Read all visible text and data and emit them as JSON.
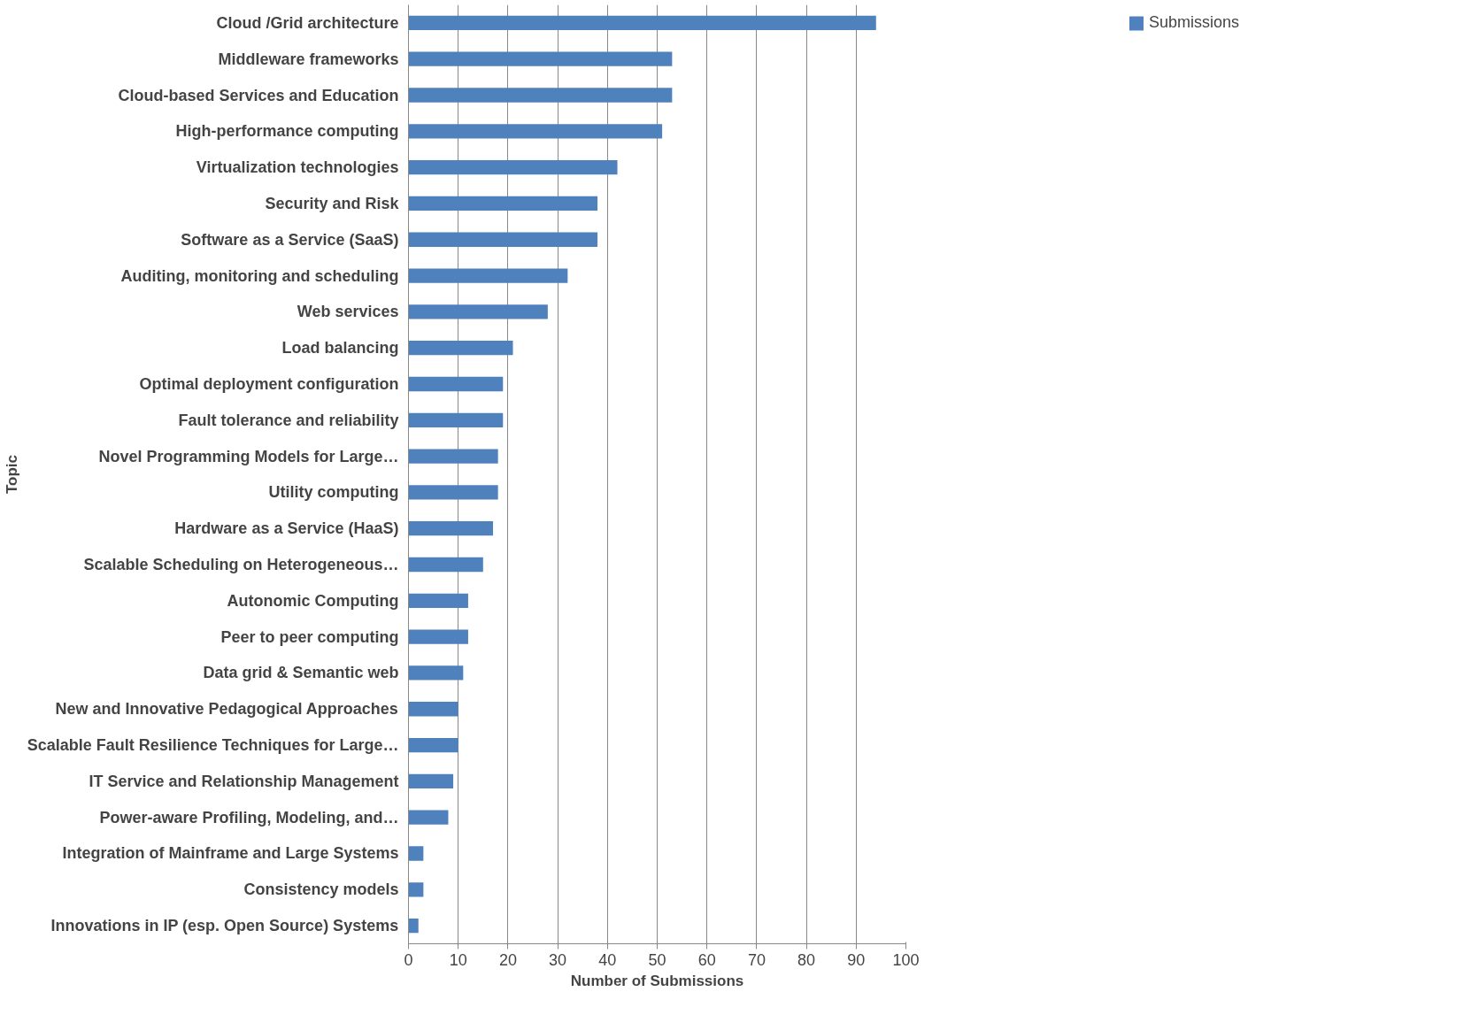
{
  "chart_data": {
    "type": "bar",
    "orientation": "horizontal",
    "xlabel": "Number of Submissions",
    "ylabel": "Topic",
    "categories": [
      "Cloud /Grid architecture",
      "Middleware frameworks",
      "Cloud-based Services and Education",
      "High-performance computing",
      "Virtualization technologies",
      "Security and Risk",
      "Software as a Service (SaaS)",
      "Auditing, monitoring and scheduling",
      "Web services",
      "Load balancing",
      "Optimal deployment configuration",
      "Fault tolerance and reliability",
      "Novel Programming Models for Large…",
      "Utility computing",
      "Hardware as a Service (HaaS)",
      "Scalable Scheduling on Heterogeneous…",
      "Autonomic Computing",
      "Peer to peer computing",
      "Data grid & Semantic web",
      "New and Innovative Pedagogical Approaches",
      "Scalable Fault Resilience Techniques for Large…",
      "IT Service and Relationship Management",
      "Power-aware Profiling, Modeling, and…",
      "Integration of Mainframe and Large Systems",
      "Consistency models",
      "Innovations in IP (esp. Open Source) Systems"
    ],
    "series": [
      {
        "name": "Submissions",
        "color": "#4f81bd",
        "values": [
          94,
          53,
          53,
          51,
          42,
          38,
          38,
          32,
          28,
          21,
          19,
          19,
          18,
          18,
          17,
          15,
          12,
          12,
          11,
          10,
          10,
          9,
          8,
          3,
          3,
          2
        ]
      }
    ],
    "xlim": [
      0,
      100
    ],
    "xticks": [
      0,
      10,
      20,
      30,
      40,
      50,
      60,
      70,
      80,
      90,
      100
    ],
    "grid": "x",
    "legend": "right"
  }
}
